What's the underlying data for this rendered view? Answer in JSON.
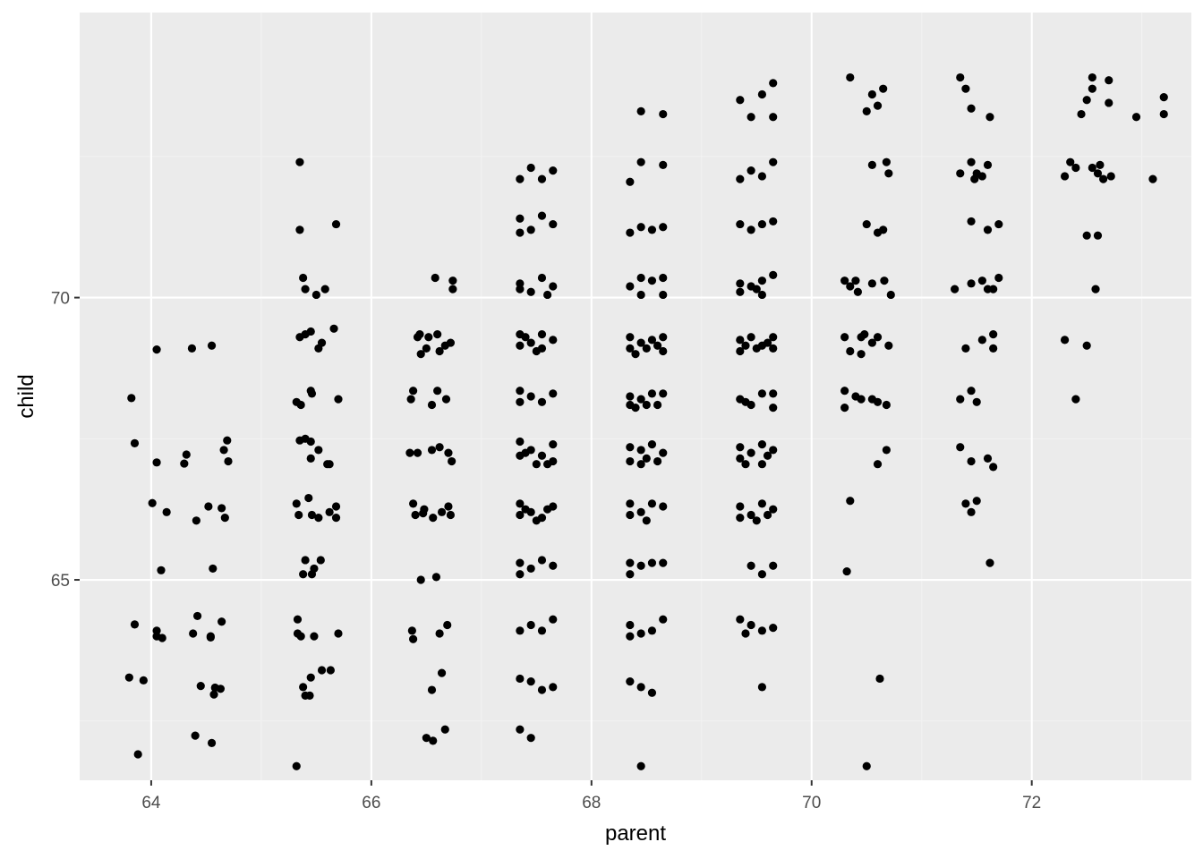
{
  "chart_data": {
    "type": "scatter",
    "title": "",
    "xlabel": "parent",
    "ylabel": "child",
    "xlim": [
      63.35,
      73.45
    ],
    "ylim": [
      61.45,
      75.05
    ],
    "x_ticks": [
      "64",
      "66",
      "68",
      "70",
      "72"
    ],
    "y_ticks": [
      "65",
      "70"
    ],
    "grid": true,
    "legend": "none",
    "colors": {
      "panel": "#ebebeb",
      "grid_major": "#ffffff",
      "grid_minor": "#f2f2f2",
      "point": "#000000"
    },
    "points": [
      [
        63.82,
        68.22
      ],
      [
        63.85,
        67.42
      ],
      [
        63.88,
        61.91
      ],
      [
        63.8,
        63.27
      ],
      [
        63.85,
        64.21
      ],
      [
        63.93,
        63.22
      ],
      [
        64.05,
        69.08
      ],
      [
        64.05,
        67.08
      ],
      [
        64.01,
        66.36
      ],
      [
        64.05,
        64.1
      ],
      [
        64.05,
        64.0
      ],
      [
        64.1,
        63.97
      ],
      [
        64.09,
        65.17
      ],
      [
        64.14,
        66.2
      ],
      [
        64.3,
        67.06
      ],
      [
        64.32,
        67.22
      ],
      [
        64.37,
        69.1
      ],
      [
        64.41,
        66.05
      ],
      [
        64.38,
        64.05
      ],
      [
        64.42,
        64.36
      ],
      [
        64.4,
        62.24
      ],
      [
        64.45,
        63.12
      ],
      [
        64.52,
        66.3
      ],
      [
        64.54,
        63.98
      ],
      [
        64.54,
        64.0
      ],
      [
        64.55,
        62.11
      ],
      [
        64.55,
        69.15
      ],
      [
        64.56,
        65.2
      ],
      [
        64.57,
        62.97
      ],
      [
        64.58,
        63.09
      ],
      [
        64.63,
        63.07
      ],
      [
        64.64,
        66.27
      ],
      [
        64.64,
        64.26
      ],
      [
        64.66,
        67.3
      ],
      [
        64.67,
        66.1
      ],
      [
        64.69,
        67.47
      ],
      [
        64.7,
        67.1
      ],
      [
        65.35,
        72.4
      ],
      [
        65.35,
        71.2
      ],
      [
        65.38,
        70.35
      ],
      [
        65.4,
        70.15
      ],
      [
        65.35,
        69.3
      ],
      [
        65.4,
        69.35
      ],
      [
        65.32,
        68.15
      ],
      [
        65.36,
        68.1
      ],
      [
        65.4,
        67.5
      ],
      [
        65.35,
        67.47
      ],
      [
        65.32,
        66.35
      ],
      [
        65.34,
        66.15
      ],
      [
        65.4,
        65.35
      ],
      [
        65.38,
        65.1
      ],
      [
        65.33,
        64.3
      ],
      [
        65.33,
        64.05
      ],
      [
        65.36,
        64.0
      ],
      [
        65.38,
        63.1
      ],
      [
        65.4,
        62.95
      ],
      [
        65.32,
        61.7
      ],
      [
        65.45,
        69.4
      ],
      [
        65.46,
        68.3
      ],
      [
        65.45,
        68.35
      ],
      [
        65.45,
        67.45
      ],
      [
        65.45,
        67.15
      ],
      [
        65.43,
        66.45
      ],
      [
        65.46,
        66.15
      ],
      [
        65.46,
        65.1
      ],
      [
        65.48,
        64.0
      ],
      [
        65.45,
        63.27
      ],
      [
        65.44,
        62.95
      ],
      [
        65.5,
        70.05
      ],
      [
        65.52,
        69.1
      ],
      [
        65.52,
        67.3
      ],
      [
        65.52,
        66.1
      ],
      [
        65.54,
        65.35
      ],
      [
        65.55,
        63.4
      ],
      [
        65.58,
        70.15
      ],
      [
        65.6,
        67.05
      ],
      [
        65.62,
        67.05
      ],
      [
        65.62,
        66.2
      ],
      [
        65.63,
        63.4
      ],
      [
        65.68,
        71.3
      ],
      [
        65.66,
        69.45
      ],
      [
        65.7,
        68.2
      ],
      [
        65.68,
        66.3
      ],
      [
        65.68,
        66.1
      ],
      [
        65.7,
        64.05
      ],
      [
        65.55,
        69.2
      ],
      [
        65.48,
        65.2
      ],
      [
        66.38,
        68.35
      ],
      [
        66.36,
        68.2
      ],
      [
        66.35,
        67.25
      ],
      [
        66.38,
        66.35
      ],
      [
        66.4,
        66.15
      ],
      [
        66.37,
        64.1
      ],
      [
        66.38,
        63.95
      ],
      [
        66.42,
        69.3
      ],
      [
        66.45,
        69.0
      ],
      [
        66.42,
        67.25
      ],
      [
        66.47,
        66.18
      ],
      [
        66.45,
        65.0
      ],
      [
        66.5,
        62.2
      ],
      [
        66.52,
        69.3
      ],
      [
        66.55,
        68.1
      ],
      [
        66.55,
        67.3
      ],
      [
        66.56,
        66.1
      ],
      [
        66.55,
        63.05
      ],
      [
        66.56,
        62.15
      ],
      [
        66.6,
        69.35
      ],
      [
        66.62,
        69.05
      ],
      [
        66.6,
        68.35
      ],
      [
        66.62,
        67.35
      ],
      [
        66.64,
        66.2
      ],
      [
        66.62,
        64.05
      ],
      [
        66.64,
        63.35
      ],
      [
        66.58,
        70.35
      ],
      [
        66.67,
        69.15
      ],
      [
        66.68,
        68.2
      ],
      [
        66.7,
        67.25
      ],
      [
        66.7,
        66.3
      ],
      [
        66.69,
        64.2
      ],
      [
        66.74,
        70.3
      ],
      [
        66.74,
        70.15
      ],
      [
        66.72,
        69.2
      ],
      [
        66.73,
        67.1
      ],
      [
        66.72,
        66.15
      ],
      [
        66.67,
        62.35
      ],
      [
        66.48,
        66.25
      ],
      [
        66.44,
        69.35
      ],
      [
        66.59,
        65.05
      ],
      [
        66.5,
        69.1
      ],
      [
        67.35,
        72.1
      ],
      [
        67.35,
        71.4
      ],
      [
        67.35,
        71.15
      ],
      [
        67.35,
        70.25
      ],
      [
        67.35,
        70.15
      ],
      [
        67.35,
        69.35
      ],
      [
        67.35,
        69.15
      ],
      [
        67.35,
        68.35
      ],
      [
        67.35,
        68.15
      ],
      [
        67.35,
        67.45
      ],
      [
        67.35,
        67.2
      ],
      [
        67.35,
        66.35
      ],
      [
        67.35,
        66.15
      ],
      [
        67.35,
        65.3
      ],
      [
        67.35,
        65.1
      ],
      [
        67.35,
        64.1
      ],
      [
        67.35,
        63.25
      ],
      [
        67.35,
        62.35
      ],
      [
        67.45,
        72.3
      ],
      [
        67.45,
        71.2
      ],
      [
        67.45,
        70.1
      ],
      [
        67.45,
        69.2
      ],
      [
        67.45,
        68.25
      ],
      [
        67.45,
        67.3
      ],
      [
        67.45,
        66.2
      ],
      [
        67.45,
        65.2
      ],
      [
        67.45,
        64.2
      ],
      [
        67.45,
        63.2
      ],
      [
        67.45,
        62.2
      ],
      [
        67.55,
        72.1
      ],
      [
        67.55,
        71.45
      ],
      [
        67.55,
        70.35
      ],
      [
        67.55,
        69.35
      ],
      [
        67.55,
        69.1
      ],
      [
        67.55,
        68.15
      ],
      [
        67.55,
        67.2
      ],
      [
        67.55,
        66.1
      ],
      [
        67.55,
        65.35
      ],
      [
        67.55,
        64.1
      ],
      [
        67.55,
        63.05
      ],
      [
        67.65,
        72.25
      ],
      [
        67.65,
        71.3
      ],
      [
        67.65,
        70.2
      ],
      [
        67.65,
        69.25
      ],
      [
        67.65,
        68.3
      ],
      [
        67.65,
        67.4
      ],
      [
        67.65,
        67.1
      ],
      [
        67.65,
        66.3
      ],
      [
        67.65,
        65.25
      ],
      [
        67.65,
        64.3
      ],
      [
        67.65,
        63.1
      ],
      [
        67.5,
        69.05
      ],
      [
        67.5,
        67.05
      ],
      [
        67.5,
        66.05
      ],
      [
        67.6,
        70.05
      ],
      [
        67.6,
        67.05
      ],
      [
        67.6,
        66.25
      ],
      [
        67.4,
        69.3
      ],
      [
        67.4,
        67.25
      ],
      [
        67.4,
        66.25
      ],
      [
        68.35,
        72.05
      ],
      [
        68.35,
        71.15
      ],
      [
        68.35,
        70.2
      ],
      [
        68.35,
        69.3
      ],
      [
        68.35,
        69.1
      ],
      [
        68.35,
        68.25
      ],
      [
        68.35,
        68.1
      ],
      [
        68.35,
        67.35
      ],
      [
        68.35,
        67.1
      ],
      [
        68.35,
        66.35
      ],
      [
        68.35,
        66.15
      ],
      [
        68.35,
        65.3
      ],
      [
        68.35,
        65.1
      ],
      [
        68.35,
        64.2
      ],
      [
        68.35,
        64.0
      ],
      [
        68.35,
        63.2
      ],
      [
        68.45,
        73.3
      ],
      [
        68.45,
        72.4
      ],
      [
        68.45,
        71.25
      ],
      [
        68.45,
        70.35
      ],
      [
        68.45,
        70.05
      ],
      [
        68.45,
        69.2
      ],
      [
        68.45,
        68.2
      ],
      [
        68.45,
        67.3
      ],
      [
        68.45,
        67.05
      ],
      [
        68.45,
        66.2
      ],
      [
        68.45,
        65.25
      ],
      [
        68.45,
        64.05
      ],
      [
        68.45,
        63.1
      ],
      [
        68.45,
        61.7
      ],
      [
        68.55,
        71.2
      ],
      [
        68.55,
        70.3
      ],
      [
        68.55,
        69.25
      ],
      [
        68.55,
        68.3
      ],
      [
        68.55,
        67.4
      ],
      [
        68.55,
        66.35
      ],
      [
        68.55,
        65.3
      ],
      [
        68.55,
        64.1
      ],
      [
        68.55,
        63.0
      ],
      [
        68.65,
        73.25
      ],
      [
        68.65,
        72.35
      ],
      [
        68.65,
        71.25
      ],
      [
        68.65,
        70.35
      ],
      [
        68.65,
        70.05
      ],
      [
        68.65,
        69.3
      ],
      [
        68.65,
        69.05
      ],
      [
        68.65,
        68.3
      ],
      [
        68.65,
        67.25
      ],
      [
        68.65,
        66.3
      ],
      [
        68.65,
        65.3
      ],
      [
        68.65,
        64.3
      ],
      [
        68.5,
        69.1
      ],
      [
        68.5,
        68.1
      ],
      [
        68.5,
        67.15
      ],
      [
        68.5,
        66.05
      ],
      [
        68.6,
        69.15
      ],
      [
        68.6,
        68.1
      ],
      [
        68.6,
        67.1
      ],
      [
        68.4,
        69.0
      ],
      [
        68.4,
        68.05
      ],
      [
        69.35,
        73.5
      ],
      [
        69.35,
        72.1
      ],
      [
        69.35,
        71.3
      ],
      [
        69.35,
        70.25
      ],
      [
        69.35,
        70.1
      ],
      [
        69.35,
        69.25
      ],
      [
        69.35,
        69.05
      ],
      [
        69.35,
        68.2
      ],
      [
        69.35,
        67.35
      ],
      [
        69.35,
        67.15
      ],
      [
        69.35,
        66.3
      ],
      [
        69.35,
        66.1
      ],
      [
        69.35,
        64.3
      ],
      [
        69.45,
        73.2
      ],
      [
        69.45,
        72.25
      ],
      [
        69.45,
        71.2
      ],
      [
        69.45,
        70.2
      ],
      [
        69.45,
        69.3
      ],
      [
        69.45,
        68.1
      ],
      [
        69.45,
        67.25
      ],
      [
        69.45,
        66.15
      ],
      [
        69.45,
        65.25
      ],
      [
        69.45,
        64.2
      ],
      [
        69.55,
        73.6
      ],
      [
        69.55,
        72.15
      ],
      [
        69.55,
        71.3
      ],
      [
        69.55,
        70.3
      ],
      [
        69.55,
        70.05
      ],
      [
        69.55,
        69.15
      ],
      [
        69.55,
        68.3
      ],
      [
        69.55,
        67.4
      ],
      [
        69.55,
        67.05
      ],
      [
        69.55,
        66.35
      ],
      [
        69.55,
        65.1
      ],
      [
        69.55,
        64.1
      ],
      [
        69.55,
        63.1
      ],
      [
        69.65,
        73.8
      ],
      [
        69.65,
        73.2
      ],
      [
        69.65,
        72.4
      ],
      [
        69.65,
        71.35
      ],
      [
        69.65,
        70.4
      ],
      [
        69.65,
        69.3
      ],
      [
        69.65,
        69.1
      ],
      [
        69.65,
        68.3
      ],
      [
        69.65,
        68.05
      ],
      [
        69.65,
        67.3
      ],
      [
        69.65,
        66.25
      ],
      [
        69.65,
        65.25
      ],
      [
        69.65,
        64.15
      ],
      [
        69.5,
        70.15
      ],
      [
        69.5,
        69.1
      ],
      [
        69.5,
        66.05
      ],
      [
        69.6,
        69.2
      ],
      [
        69.6,
        67.2
      ],
      [
        69.6,
        66.15
      ],
      [
        69.4,
        69.15
      ],
      [
        69.4,
        68.15
      ],
      [
        69.4,
        67.05
      ],
      [
        69.4,
        64.05
      ],
      [
        70.35,
        73.9
      ],
      [
        70.3,
        70.3
      ],
      [
        70.35,
        70.2
      ],
      [
        70.3,
        69.3
      ],
      [
        70.35,
        69.05
      ],
      [
        70.3,
        68.35
      ],
      [
        70.3,
        68.05
      ],
      [
        70.35,
        66.4
      ],
      [
        70.32,
        65.15
      ],
      [
        70.42,
        70.1
      ],
      [
        70.45,
        69.3
      ],
      [
        70.45,
        69.0
      ],
      [
        70.45,
        68.2
      ],
      [
        70.55,
        73.6
      ],
      [
        70.5,
        73.3
      ],
      [
        70.55,
        72.35
      ],
      [
        70.5,
        71.3
      ],
      [
        70.55,
        70.25
      ],
      [
        70.55,
        69.2
      ],
      [
        70.55,
        68.2
      ],
      [
        70.5,
        61.7
      ],
      [
        70.6,
        73.4
      ],
      [
        70.6,
        71.15
      ],
      [
        70.6,
        69.3
      ],
      [
        70.6,
        68.15
      ],
      [
        70.6,
        67.05
      ],
      [
        70.62,
        63.25
      ],
      [
        70.65,
        73.7
      ],
      [
        70.68,
        72.4
      ],
      [
        70.66,
        70.3
      ],
      [
        70.7,
        69.15
      ],
      [
        70.68,
        68.1
      ],
      [
        70.68,
        67.3
      ],
      [
        70.7,
        72.2
      ],
      [
        70.72,
        70.05
      ],
      [
        70.4,
        70.3
      ],
      [
        70.48,
        69.35
      ],
      [
        70.65,
        71.2
      ],
      [
        70.4,
        68.25
      ],
      [
        71.35,
        73.9
      ],
      [
        71.35,
        72.2
      ],
      [
        71.3,
        70.15
      ],
      [
        71.35,
        68.2
      ],
      [
        71.35,
        67.35
      ],
      [
        71.4,
        66.35
      ],
      [
        71.4,
        73.7
      ],
      [
        71.45,
        72.4
      ],
      [
        71.45,
        71.35
      ],
      [
        71.45,
        70.25
      ],
      [
        71.4,
        69.1
      ],
      [
        71.45,
        68.35
      ],
      [
        71.45,
        67.1
      ],
      [
        71.45,
        66.2
      ],
      [
        71.45,
        73.35
      ],
      [
        71.5,
        72.2
      ],
      [
        71.5,
        68.15
      ],
      [
        71.5,
        66.4
      ],
      [
        71.55,
        72.15
      ],
      [
        71.55,
        70.3
      ],
      [
        71.55,
        69.25
      ],
      [
        71.6,
        72.35
      ],
      [
        71.6,
        71.2
      ],
      [
        71.62,
        73.2
      ],
      [
        71.6,
        70.15
      ],
      [
        71.65,
        69.35
      ],
      [
        71.65,
        69.1
      ],
      [
        71.6,
        67.15
      ],
      [
        71.65,
        67.0
      ],
      [
        71.62,
        65.3
      ],
      [
        71.7,
        71.3
      ],
      [
        71.7,
        70.35
      ],
      [
        71.65,
        70.15
      ],
      [
        71.48,
        72.1
      ],
      [
        72.3,
        72.15
      ],
      [
        72.35,
        72.4
      ],
      [
        72.3,
        69.25
      ],
      [
        72.4,
        72.3
      ],
      [
        72.4,
        68.2
      ],
      [
        72.45,
        73.25
      ],
      [
        72.5,
        73.5
      ],
      [
        72.5,
        71.1
      ],
      [
        72.55,
        73.9
      ],
      [
        72.55,
        73.7
      ],
      [
        72.55,
        72.3
      ],
      [
        72.5,
        69.15
      ],
      [
        72.6,
        72.2
      ],
      [
        72.6,
        71.1
      ],
      [
        72.58,
        70.15
      ],
      [
        72.62,
        72.35
      ],
      [
        72.65,
        72.1
      ],
      [
        72.7,
        73.85
      ],
      [
        72.7,
        73.45
      ],
      [
        72.72,
        72.15
      ],
      [
        72.95,
        73.2
      ],
      [
        73.1,
        72.1
      ],
      [
        73.2,
        73.55
      ],
      [
        73.2,
        73.25
      ]
    ]
  }
}
